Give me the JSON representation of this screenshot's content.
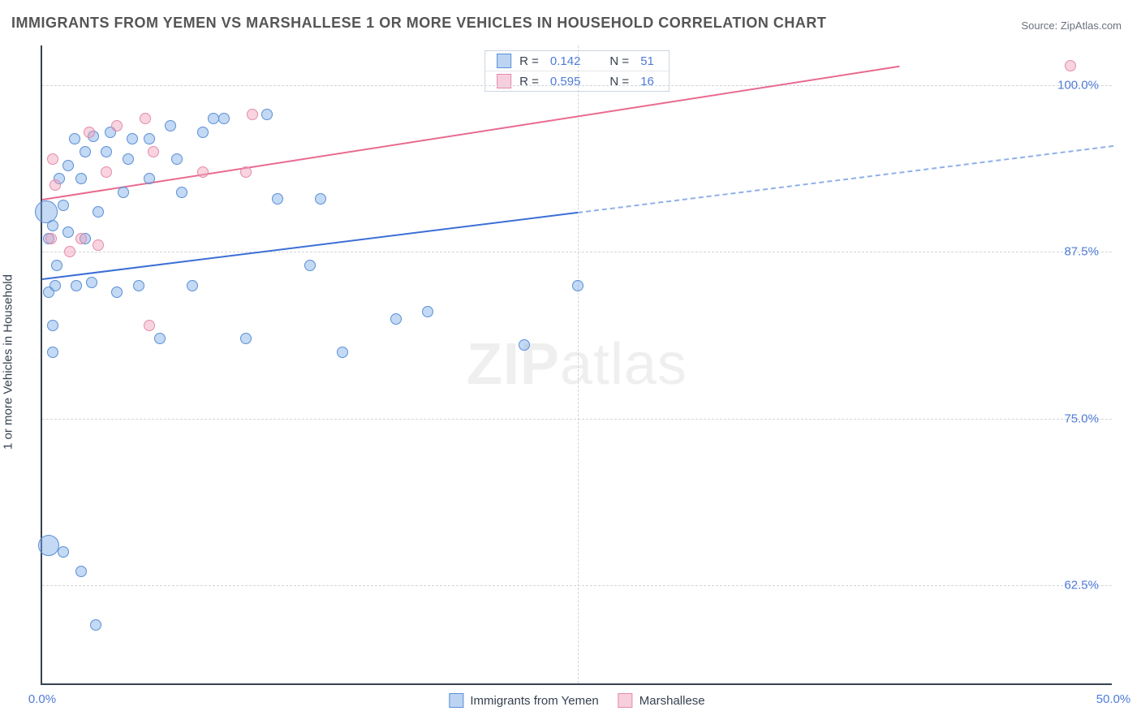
{
  "title": "IMMIGRANTS FROM YEMEN VS MARSHALLESE 1 OR MORE VEHICLES IN HOUSEHOLD CORRELATION CHART",
  "source": "Source: ZipAtlas.com",
  "ylabel": "1 or more Vehicles in Household",
  "watermark_a": "ZIP",
  "watermark_b": "atlas",
  "chart": {
    "type": "scatter",
    "xlim": [
      0,
      50
    ],
    "ylim": [
      55,
      103
    ],
    "xticks": [
      {
        "v": 0,
        "label": "0.0%"
      },
      {
        "v": 50,
        "label": "50.0%"
      }
    ],
    "xtick_minor": [
      25
    ],
    "yticks": [
      {
        "v": 62.5,
        "label": "62.5%"
      },
      {
        "v": 75,
        "label": "75.0%"
      },
      {
        "v": 87.5,
        "label": "87.5%"
      },
      {
        "v": 100,
        "label": "100.0%"
      }
    ],
    "grid_color": "#d1d5db",
    "background": "#ffffff",
    "series": [
      {
        "name": "Immigrants from Yemen",
        "color_fill": "rgba(122,170,230,0.45)",
        "color_stroke": "#5a8fd6",
        "r_value": "0.142",
        "n_value": "51",
        "trend": {
          "x1": 0,
          "y1": 85.5,
          "x2": 25,
          "y2": 90.5,
          "color": "#3b6fd6"
        },
        "trend_ext": {
          "x1": 25,
          "y1": 90.5,
          "x2": 50,
          "y2": 95.5,
          "color": "#8fb0e8",
          "dash": true
        },
        "points": [
          {
            "x": 0.2,
            "y": 90.5,
            "r": 14
          },
          {
            "x": 0.3,
            "y": 65.5,
            "r": 13
          },
          {
            "x": 0.5,
            "y": 80,
            "r": 7
          },
          {
            "x": 0.5,
            "y": 82,
            "r": 7
          },
          {
            "x": 0.3,
            "y": 84.5,
            "r": 7
          },
          {
            "x": 0.6,
            "y": 85,
            "r": 7
          },
          {
            "x": 0.7,
            "y": 86.5,
            "r": 7
          },
          {
            "x": 0.3,
            "y": 88.5,
            "r": 7
          },
          {
            "x": 0.5,
            "y": 89.5,
            "r": 7
          },
          {
            "x": 1.2,
            "y": 89,
            "r": 7
          },
          {
            "x": 1.0,
            "y": 91,
            "r": 7
          },
          {
            "x": 0.8,
            "y": 93,
            "r": 7
          },
          {
            "x": 1.2,
            "y": 94,
            "r": 7
          },
          {
            "x": 1.8,
            "y": 93,
            "r": 7
          },
          {
            "x": 2.0,
            "y": 95,
            "r": 7
          },
          {
            "x": 1.5,
            "y": 96,
            "r": 7
          },
          {
            "x": 2.4,
            "y": 96.2,
            "r": 7
          },
          {
            "x": 2.0,
            "y": 88.5,
            "r": 7
          },
          {
            "x": 1.6,
            "y": 85,
            "r": 7
          },
          {
            "x": 2.3,
            "y": 85.2,
            "r": 7
          },
          {
            "x": 2.6,
            "y": 90.5,
            "r": 7
          },
          {
            "x": 3.0,
            "y": 95,
            "r": 7
          },
          {
            "x": 3.2,
            "y": 96.5,
            "r": 7
          },
          {
            "x": 3.5,
            "y": 84.5,
            "r": 7
          },
          {
            "x": 3.8,
            "y": 92,
            "r": 7
          },
          {
            "x": 4.0,
            "y": 94.5,
            "r": 7
          },
          {
            "x": 4.2,
            "y": 96,
            "r": 7
          },
          {
            "x": 4.5,
            "y": 85,
            "r": 7
          },
          {
            "x": 5.0,
            "y": 93,
            "r": 7
          },
          {
            "x": 5.0,
            "y": 96,
            "r": 7
          },
          {
            "x": 5.5,
            "y": 81,
            "r": 7
          },
          {
            "x": 6.0,
            "y": 97,
            "r": 7
          },
          {
            "x": 6.3,
            "y": 94.5,
            "r": 7
          },
          {
            "x": 6.5,
            "y": 92,
            "r": 7
          },
          {
            "x": 7.0,
            "y": 85,
            "r": 7
          },
          {
            "x": 7.5,
            "y": 96.5,
            "r": 7
          },
          {
            "x": 8.0,
            "y": 97.5,
            "r": 7
          },
          {
            "x": 8.5,
            "y": 97.5,
            "r": 7
          },
          {
            "x": 9.5,
            "y": 81,
            "r": 7
          },
          {
            "x": 10.5,
            "y": 97.8,
            "r": 7
          },
          {
            "x": 11.0,
            "y": 91.5,
            "r": 7
          },
          {
            "x": 12.5,
            "y": 86.5,
            "r": 7
          },
          {
            "x": 13.0,
            "y": 91.5,
            "r": 7
          },
          {
            "x": 14.0,
            "y": 80,
            "r": 7
          },
          {
            "x": 16.5,
            "y": 82.5,
            "r": 7
          },
          {
            "x": 18.0,
            "y": 83,
            "r": 7
          },
          {
            "x": 22.5,
            "y": 80.5,
            "r": 7
          },
          {
            "x": 25.0,
            "y": 85,
            "r": 7
          },
          {
            "x": 1.0,
            "y": 65,
            "r": 7
          },
          {
            "x": 1.8,
            "y": 63.5,
            "r": 7
          },
          {
            "x": 2.5,
            "y": 59.5,
            "r": 7
          }
        ]
      },
      {
        "name": "Marshallese",
        "color_fill": "rgba(240,160,185,0.45)",
        "color_stroke": "#e48bad",
        "r_value": "0.595",
        "n_value": "16",
        "trend": {
          "x1": 0,
          "y1": 91.5,
          "x2": 40,
          "y2": 101.5,
          "color": "#e86a8f"
        },
        "points": [
          {
            "x": 0.4,
            "y": 88.5,
            "r": 7
          },
          {
            "x": 0.6,
            "y": 92.5,
            "r": 7
          },
          {
            "x": 0.5,
            "y": 94.5,
            "r": 7
          },
          {
            "x": 1.3,
            "y": 87.5,
            "r": 7
          },
          {
            "x": 1.8,
            "y": 88.5,
            "r": 7
          },
          {
            "x": 2.2,
            "y": 96.5,
            "r": 7
          },
          {
            "x": 2.6,
            "y": 88,
            "r": 7
          },
          {
            "x": 3.0,
            "y": 93.5,
            "r": 7
          },
          {
            "x": 3.5,
            "y": 97,
            "r": 7
          },
          {
            "x": 4.8,
            "y": 97.5,
            "r": 7
          },
          {
            "x": 5.2,
            "y": 95,
            "r": 7
          },
          {
            "x": 5.0,
            "y": 82,
            "r": 7
          },
          {
            "x": 7.5,
            "y": 93.5,
            "r": 7
          },
          {
            "x": 9.5,
            "y": 93.5,
            "r": 7
          },
          {
            "x": 9.8,
            "y": 97.8,
            "r": 7
          },
          {
            "x": 48.0,
            "y": 101.5,
            "r": 7
          }
        ]
      }
    ]
  },
  "legend_top_labels": {
    "R": "R  =",
    "N": "N ="
  },
  "legend_bottom": [
    "Immigrants from Yemen",
    "Marshallese"
  ]
}
